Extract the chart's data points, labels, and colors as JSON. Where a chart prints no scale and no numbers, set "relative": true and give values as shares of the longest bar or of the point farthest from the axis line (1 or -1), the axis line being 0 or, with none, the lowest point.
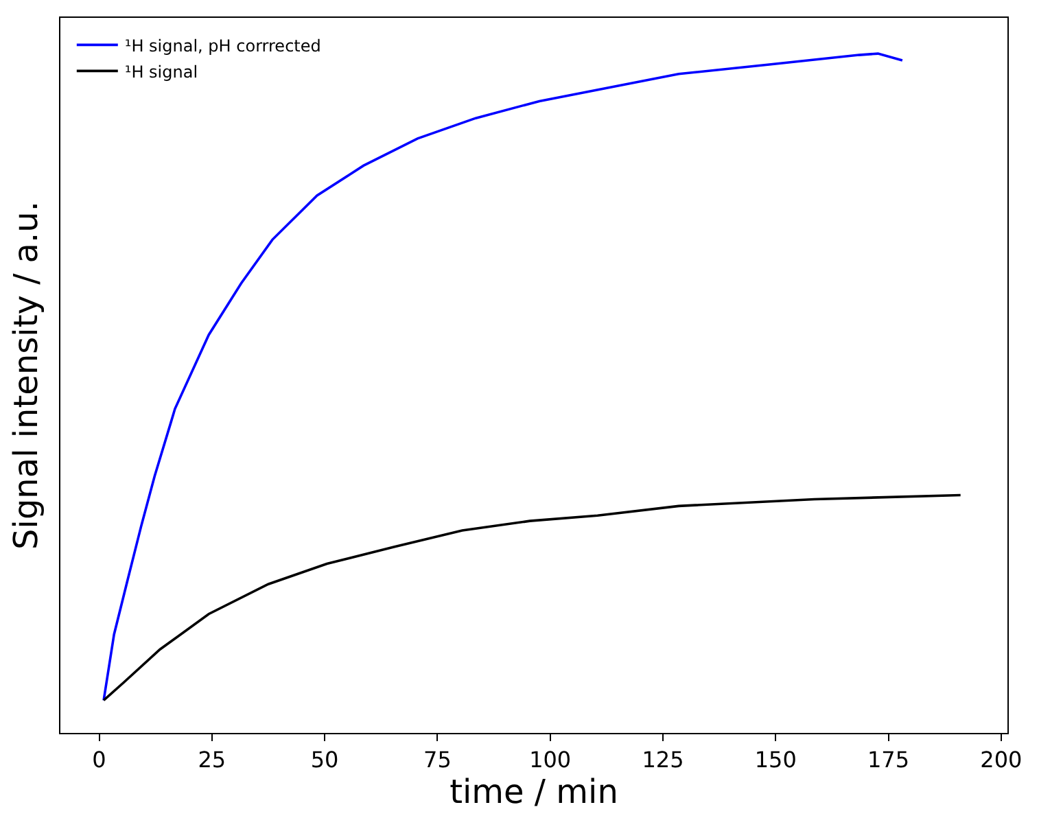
{
  "chart_data": {
    "type": "line",
    "relative": true,
    "xlabel": "time / min",
    "ylabel": "Signal intensity / a.u.",
    "xlim": [
      -8.6,
      201.4
    ],
    "xticks": [
      0,
      25,
      50,
      75,
      100,
      125,
      150,
      175,
      200
    ],
    "legend": "top left",
    "tick_labels": "x",
    "line_style": "solid",
    "marker": "none",
    "series": [
      {
        "name": "¹H signal, pH corrrected",
        "color": "#0000ff",
        "x": [
          1,
          3.3,
          6.3,
          9.3,
          12.3,
          15.9,
          16.8,
          24.3,
          31.5,
          38.4,
          48.3,
          58.6,
          70.6,
          83.5,
          97.6,
          128.5,
          148.6,
          168.5,
          172.7,
          178.1
        ],
        "values": [
          0.048,
          0.145,
          0.225,
          0.304,
          0.378,
          0.457,
          0.477,
          0.586,
          0.662,
          0.726,
          0.791,
          0.835,
          0.875,
          0.905,
          0.93,
          0.97,
          0.984,
          0.998,
          1.0,
          0.99
        ]
      },
      {
        "name": "¹H signal",
        "color": "#000000",
        "x": [
          1,
          5.4,
          13.5,
          24.3,
          37.5,
          50.5,
          65.5,
          80.5,
          95.5,
          110.5,
          128.5,
          158.6,
          191
        ],
        "values": [
          0.048,
          0.074,
          0.123,
          0.175,
          0.219,
          0.249,
          0.274,
          0.298,
          0.312,
          0.32,
          0.334,
          0.344,
          0.35
        ]
      }
    ]
  }
}
